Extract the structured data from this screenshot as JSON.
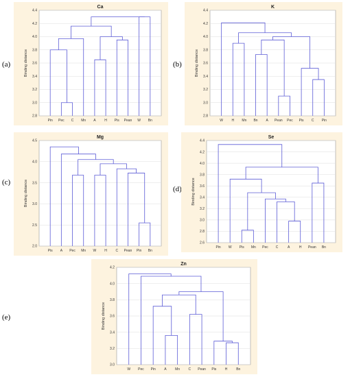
{
  "panels": [
    {
      "label": "(a)"
    },
    {
      "label": "(b)"
    },
    {
      "label": "(c)"
    },
    {
      "label": "(d)"
    },
    {
      "label": "(e)"
    }
  ],
  "style": {
    "frame_color": "#fdf3df",
    "plot_color": "#ffffff",
    "line_color": "#5b5bd6",
    "grid_color": "#dcdcdc"
  },
  "chart_data": [
    {
      "type": "dendrogram",
      "title": "Ca",
      "ylabel": "Binding distance",
      "ylim": [
        2.8,
        4.4
      ],
      "yticks": [
        2.8,
        3.0,
        3.2,
        3.4,
        3.6,
        3.8,
        4.0,
        4.2,
        4.4
      ],
      "grid": true,
      "leaves": [
        "Pin",
        "Pec",
        "C",
        "Mn",
        "A",
        "H",
        "Pis",
        "Pean",
        "W",
        "Bn"
      ],
      "merges": [
        [
          1,
          2,
          3.0
        ],
        [
          0,
          10,
          3.8
        ],
        [
          4,
          5,
          3.65
        ],
        [
          6,
          7,
          3.95
        ],
        [
          12,
          13,
          4.0
        ],
        [
          11,
          3,
          3.97
        ],
        [
          8,
          9,
          4.3
        ],
        [
          15,
          14,
          4.16
        ],
        [
          17,
          16,
          4.3
        ]
      ]
    },
    {
      "type": "dendrogram",
      "title": "K",
      "ylabel": "Binding distance",
      "ylim": [
        2.8,
        4.4
      ],
      "yticks": [
        2.8,
        3.0,
        3.2,
        3.4,
        3.6,
        3.8,
        4.0,
        4.2,
        4.4
      ],
      "grid": true,
      "leaves": [
        "W",
        "H",
        "Mn",
        "Bn",
        "A",
        "Pean",
        "Pec",
        "Pis",
        "C",
        "Pin"
      ],
      "merges": [
        [
          5,
          6,
          3.1
        ],
        [
          8,
          9,
          3.35
        ],
        [
          7,
          11,
          3.52
        ],
        [
          3,
          4,
          3.73
        ],
        [
          1,
          2,
          3.9
        ],
        [
          13,
          10,
          3.95
        ],
        [
          15,
          12,
          4.0
        ],
        [
          14,
          16,
          4.06
        ],
        [
          0,
          17,
          4.21
        ]
      ]
    },
    {
      "type": "dendrogram",
      "title": "Mg",
      "ylabel": "Binding distance",
      "ylim": [
        2.0,
        4.5
      ],
      "yticks": [
        2.0,
        2.5,
        3.0,
        3.5,
        4.0,
        4.5
      ],
      "grid": true,
      "leaves": [
        "Pis",
        "A",
        "Pec",
        "Mn",
        "W",
        "H",
        "C",
        "Pean",
        "Pin",
        "Bn"
      ],
      "merges": [
        [
          8,
          9,
          2.55
        ],
        [
          2,
          3,
          3.68
        ],
        [
          4,
          5,
          3.68
        ],
        [
          7,
          10,
          3.73
        ],
        [
          6,
          13,
          3.83
        ],
        [
          12,
          14,
          3.95
        ],
        [
          11,
          15,
          4.05
        ],
        [
          1,
          16,
          4.18
        ],
        [
          0,
          17,
          4.35
        ]
      ]
    },
    {
      "type": "dendrogram",
      "title": "Se",
      "ylabel": "Binding distance",
      "ylim": [
        2.6,
        4.4
      ],
      "yticks": [
        2.6,
        2.8,
        3.0,
        3.2,
        3.4,
        3.6,
        3.8,
        4.0,
        4.2,
        4.4
      ],
      "grid": true,
      "leaves": [
        "Pin",
        "W",
        "Pis",
        "Mn",
        "Pec",
        "C",
        "A",
        "H",
        "Pean",
        "Bn"
      ],
      "merges": [
        [
          2,
          3,
          2.82
        ],
        [
          6,
          7,
          2.98
        ],
        [
          5,
          11,
          3.32
        ],
        [
          4,
          12,
          3.37
        ],
        [
          10,
          13,
          3.48
        ],
        [
          8,
          9,
          3.65
        ],
        [
          1,
          14,
          3.72
        ],
        [
          16,
          15,
          3.93
        ],
        [
          0,
          17,
          4.33
        ]
      ]
    },
    {
      "type": "dendrogram",
      "title": "Zn",
      "ylabel": "Binding distance",
      "ylim": [
        3.0,
        4.2
      ],
      "yticks": [
        3.0,
        3.2,
        3.4,
        3.6,
        3.8,
        4.0,
        4.2
      ],
      "grid": true,
      "leaves": [
        "W",
        "Pec",
        "Pin",
        "A",
        "Mn",
        "C",
        "Pean",
        "Pis",
        "H",
        "Bn"
      ],
      "merges": [
        [
          3,
          4,
          3.36
        ],
        [
          8,
          9,
          3.27
        ],
        [
          7,
          11,
          3.29
        ],
        [
          5,
          6,
          3.62
        ],
        [
          2,
          10,
          3.72
        ],
        [
          14,
          13,
          3.86
        ],
        [
          15,
          12,
          3.9
        ],
        [
          1,
          16,
          4.09
        ],
        [
          0,
          17,
          4.12
        ]
      ]
    }
  ]
}
